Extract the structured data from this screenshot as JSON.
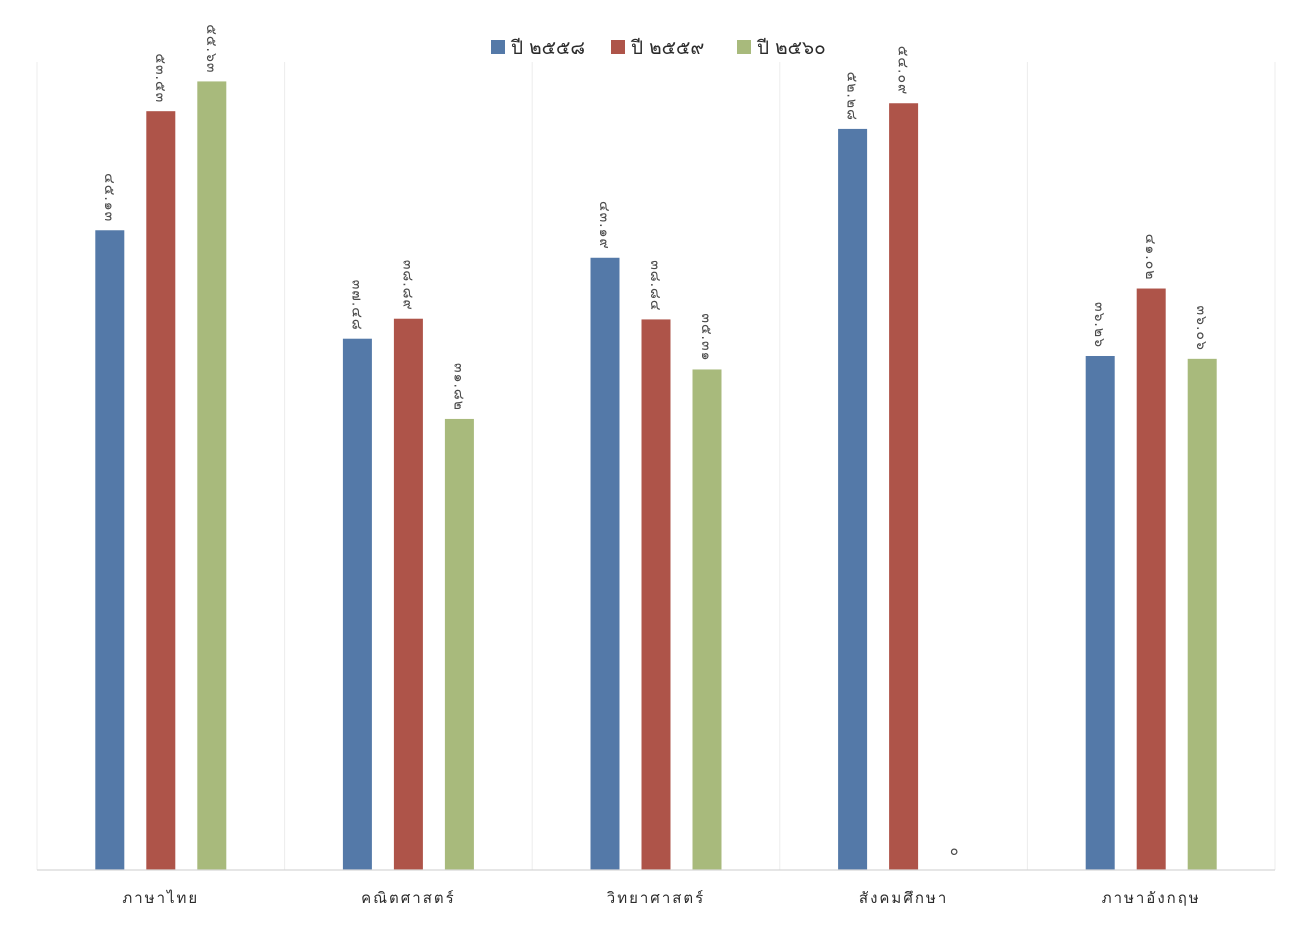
{
  "chart_data": {
    "type": "bar",
    "title": "",
    "xlabel": "",
    "ylabel": "",
    "ylim": [
      0,
      57
    ],
    "grid": false,
    "legend_position": "top-center",
    "categories": [
      "ภาษาไทย",
      "คณิตศาสตร์",
      "วิทยาศาสตร์",
      "สังคมศึกษา",
      "ภาษาอังกฤษ"
    ],
    "series": [
      {
        "name": "ปี ๒๕๕๘",
        "color": "#5479a8",
        "values": [
          45.13,
          37.48,
          43.19,
          52.28,
          36.26
        ],
        "labels": [
          "๔๕.๑๓",
          "๓๗.๔๘",
          "๔๓.๑๙",
          "๕๒.๒๘",
          "๓๖.๒๖"
        ]
      },
      {
        "name": "ปี ๒๕๕๙",
        "color": "#ae5449",
        "values": [
          53.53,
          38.89,
          38.84,
          54.09,
          41.02
        ],
        "labels": [
          "๕๓.๕๓",
          "๓๘.๘๙",
          "๓๘.๘๔",
          "๕๔.๐๙",
          "๔๑.๐๒"
        ]
      },
      {
        "name": "ปี ๒๕๖๐",
        "color": "#a8ba7c",
        "values": [
          55.63,
          31.82,
          35.31,
          0,
          36.06
        ],
        "labels": [
          "๕๕.๖๓",
          "๓๑.๘๒",
          "๓๕.๓๑",
          "๐",
          "๓๖.๐๖"
        ]
      }
    ]
  }
}
